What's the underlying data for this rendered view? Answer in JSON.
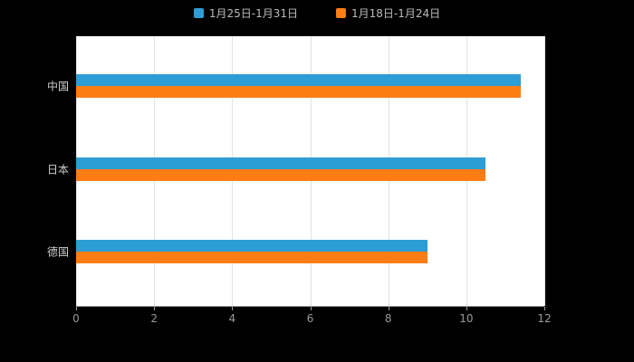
{
  "chart_data": {
    "type": "bar",
    "orientation": "horizontal",
    "title": "",
    "categories": [
      "中国",
      "日本",
      "德国"
    ],
    "series": [
      {
        "name": "1月25日-1月31日",
        "color": "#2d9dd5",
        "values": [
          11.4,
          10.5,
          9.0
        ]
      },
      {
        "name": "1月18日-1月24日",
        "color": "#fc7d14",
        "values": [
          11.4,
          10.5,
          9.0
        ]
      }
    ],
    "xlim": [
      0,
      12
    ],
    "x_ticks": [
      0,
      2,
      4,
      6,
      8,
      10,
      12
    ],
    "grid": true,
    "legend_position": "top"
  },
  "colors": {
    "background": "#000000",
    "plot_background": "#ffffff",
    "gridline": "#e3e3e3",
    "axis_line": "#9a9a9a",
    "tick_label": "#999999",
    "category_label": "#d0d0d0",
    "legend_label": "#bbbbbb"
  }
}
